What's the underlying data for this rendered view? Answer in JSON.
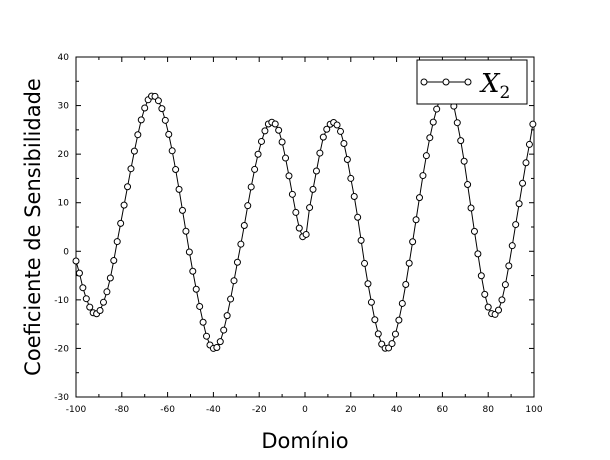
{
  "chart_data": {
    "type": "line",
    "title": "",
    "xlabel": "Domínio",
    "ylabel": "Coeficiente de Sensibilidade",
    "xlim": [
      -100,
      100
    ],
    "ylim": [
      -30,
      40
    ],
    "xticks": [
      -100,
      -80,
      -60,
      -40,
      -20,
      0,
      20,
      40,
      60,
      80,
      100
    ],
    "yticks": [
      -30,
      -20,
      -10,
      0,
      10,
      20,
      30,
      40
    ],
    "grid": false,
    "legend_position": "top-right",
    "marker": "open-circle",
    "series": [
      {
        "name": "X2",
        "name_main": "X",
        "name_sub": "2",
        "x_start": -100,
        "x_end": 100,
        "x_step": 1.5,
        "points": [
          [
            -100,
            -2
          ],
          [
            -97,
            -7.5
          ],
          [
            -94,
            -11.5
          ],
          [
            -92,
            -12.8
          ],
          [
            -90,
            -12.5
          ],
          [
            -88,
            -10.5
          ],
          [
            -85,
            -5.5
          ],
          [
            -82,
            2
          ],
          [
            -79,
            9.5
          ],
          [
            -76,
            17
          ],
          [
            -73,
            24
          ],
          [
            -70,
            29.5
          ],
          [
            -68,
            31.5
          ],
          [
            -66,
            32
          ],
          [
            -64,
            31
          ],
          [
            -62,
            28.5
          ],
          [
            -59,
            23
          ],
          [
            -56,
            15.5
          ],
          [
            -53,
            7
          ],
          [
            -50,
            -1.5
          ],
          [
            -47,
            -9
          ],
          [
            -44,
            -15.5
          ],
          [
            -42,
            -18.8
          ],
          [
            -40,
            -20
          ],
          [
            -38,
            -19.5
          ],
          [
            -36,
            -17
          ],
          [
            -33,
            -11
          ],
          [
            -30,
            -3.5
          ],
          [
            -27,
            4
          ],
          [
            -24,
            12
          ],
          [
            -21,
            19
          ],
          [
            -18,
            24
          ],
          [
            -16,
            26.2
          ],
          [
            -14,
            26.5
          ],
          [
            -12,
            25.5
          ],
          [
            -10,
            22.5
          ],
          [
            -8,
            18
          ],
          [
            -6,
            13
          ],
          [
            -4,
            8
          ],
          [
            -2,
            4
          ],
          [
            -1,
            3
          ],
          [
            0,
            3.5
          ],
          [
            1,
            4
          ],
          [
            2,
            9
          ],
          [
            4,
            14
          ],
          [
            6,
            19
          ],
          [
            8,
            23.5
          ],
          [
            10,
            25.5
          ],
          [
            12,
            26.5
          ],
          [
            14,
            26
          ],
          [
            16,
            24
          ],
          [
            18,
            20
          ],
          [
            20,
            15
          ],
          [
            23,
            7
          ],
          [
            26,
            -2.5
          ],
          [
            29,
            -10.5
          ],
          [
            32,
            -17
          ],
          [
            34,
            -19.5
          ],
          [
            36,
            -20
          ],
          [
            38,
            -19
          ],
          [
            40,
            -16
          ],
          [
            43,
            -9.5
          ],
          [
            46,
            -1
          ],
          [
            49,
            8
          ],
          [
            52,
            17
          ],
          [
            55,
            24.5
          ],
          [
            58,
            30
          ],
          [
            60,
            32.5
          ],
          [
            62,
            33
          ],
          [
            64,
            31.5
          ],
          [
            66,
            27.5
          ],
          [
            69,
            20
          ],
          [
            72,
            10.5
          ],
          [
            75,
            1
          ],
          [
            78,
            -7.5
          ],
          [
            80,
            -11.5
          ],
          [
            82,
            -13
          ],
          [
            84,
            -12.5
          ],
          [
            86,
            -10
          ],
          [
            89,
            -3
          ],
          [
            92,
            5.5
          ],
          [
            95,
            14
          ],
          [
            98,
            22
          ],
          [
            100,
            27
          ]
        ]
      }
    ]
  }
}
